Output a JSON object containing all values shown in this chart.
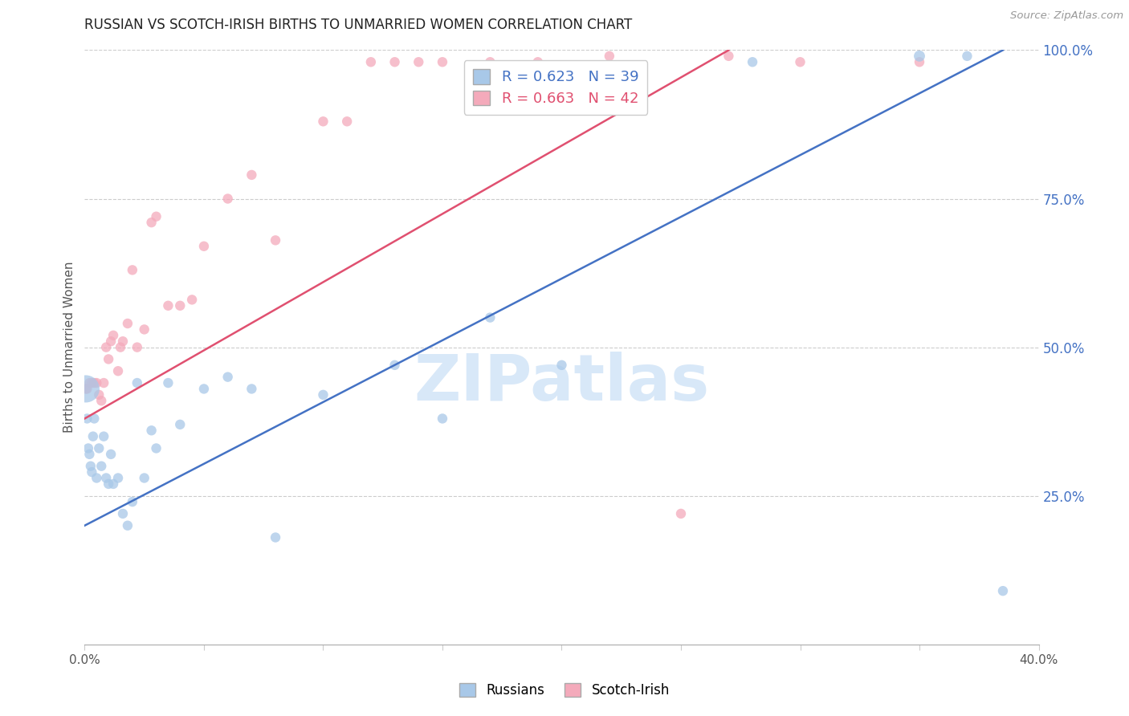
{
  "title": "RUSSIAN VS SCOTCH-IRISH BIRTHS TO UNMARRIED WOMEN CORRELATION CHART",
  "source": "Source: ZipAtlas.com",
  "ylabel": "Births to Unmarried Women",
  "xlim": [
    0.0,
    40.0
  ],
  "ylim": [
    0.0,
    100.0
  ],
  "russian_R": 0.623,
  "russian_N": 39,
  "scotch_R": 0.663,
  "scotch_N": 42,
  "russian_color": "#A8C8E8",
  "scotch_color": "#F4AABB",
  "russian_line_color": "#4472C4",
  "scotch_line_color": "#E05070",
  "title_color": "#222222",
  "axis_label_color": "#555555",
  "right_tick_color": "#4472C4",
  "source_color": "#999999",
  "watermark_color": "#D8E8F8",
  "russians_x": [
    0.05,
    0.1,
    0.15,
    0.2,
    0.25,
    0.3,
    0.35,
    0.4,
    0.5,
    0.6,
    0.7,
    0.8,
    0.9,
    1.0,
    1.1,
    1.2,
    1.4,
    1.6,
    1.8,
    2.0,
    2.2,
    2.5,
    2.8,
    3.0,
    3.5,
    4.0,
    5.0,
    6.0,
    7.0,
    8.0,
    10.0,
    13.0,
    15.0,
    17.0,
    20.0,
    28.0,
    35.0,
    37.0,
    38.5
  ],
  "russians_y": [
    43.0,
    38.0,
    33.0,
    32.0,
    30.0,
    29.0,
    35.0,
    38.0,
    28.0,
    33.0,
    30.0,
    35.0,
    28.0,
    27.0,
    32.0,
    27.0,
    28.0,
    22.0,
    20.0,
    24.0,
    44.0,
    28.0,
    36.0,
    33.0,
    44.0,
    37.0,
    43.0,
    45.0,
    43.0,
    18.0,
    42.0,
    47.0,
    38.0,
    55.0,
    47.0,
    98.0,
    99.0,
    99.0,
    9.0
  ],
  "russians_size_pt": [
    600,
    80,
    80,
    80,
    80,
    80,
    80,
    80,
    80,
    80,
    80,
    80,
    80,
    80,
    80,
    80,
    80,
    80,
    80,
    80,
    80,
    80,
    80,
    80,
    80,
    80,
    80,
    80,
    80,
    80,
    80,
    80,
    80,
    80,
    80,
    80,
    100,
    80,
    80
  ],
  "scotch_x": [
    0.05,
    0.1,
    0.2,
    0.3,
    0.4,
    0.5,
    0.6,
    0.7,
    0.8,
    0.9,
    1.0,
    1.1,
    1.2,
    1.4,
    1.5,
    1.6,
    1.8,
    2.0,
    2.2,
    2.5,
    2.8,
    3.0,
    3.5,
    4.0,
    4.5,
    5.0,
    6.0,
    7.0,
    8.0,
    10.0,
    11.0,
    12.0,
    13.0,
    14.0,
    15.0,
    17.0,
    19.0,
    22.0,
    25.0,
    27.0,
    30.0,
    35.0
  ],
  "scotch_y": [
    43.0,
    43.0,
    44.0,
    44.0,
    44.0,
    44.0,
    42.0,
    41.0,
    44.0,
    50.0,
    48.0,
    51.0,
    52.0,
    46.0,
    50.0,
    51.0,
    54.0,
    63.0,
    50.0,
    53.0,
    71.0,
    72.0,
    57.0,
    57.0,
    58.0,
    67.0,
    75.0,
    79.0,
    68.0,
    88.0,
    88.0,
    98.0,
    98.0,
    98.0,
    98.0,
    98.0,
    98.0,
    99.0,
    22.0,
    99.0,
    98.0,
    98.0
  ],
  "scotch_size_pt": [
    80,
    80,
    80,
    80,
    80,
    80,
    80,
    80,
    80,
    80,
    80,
    80,
    80,
    80,
    80,
    80,
    80,
    80,
    80,
    80,
    80,
    80,
    80,
    80,
    80,
    80,
    80,
    80,
    80,
    80,
    80,
    80,
    80,
    80,
    80,
    80,
    80,
    80,
    80,
    80,
    80,
    80
  ],
  "blue_line_x0": 0.0,
  "blue_line_y0": 20.0,
  "blue_line_x1": 38.5,
  "blue_line_y1": 100.0,
  "pink_line_x0": 0.0,
  "pink_line_y0": 38.0,
  "pink_line_x1": 27.0,
  "pink_line_y1": 100.0
}
